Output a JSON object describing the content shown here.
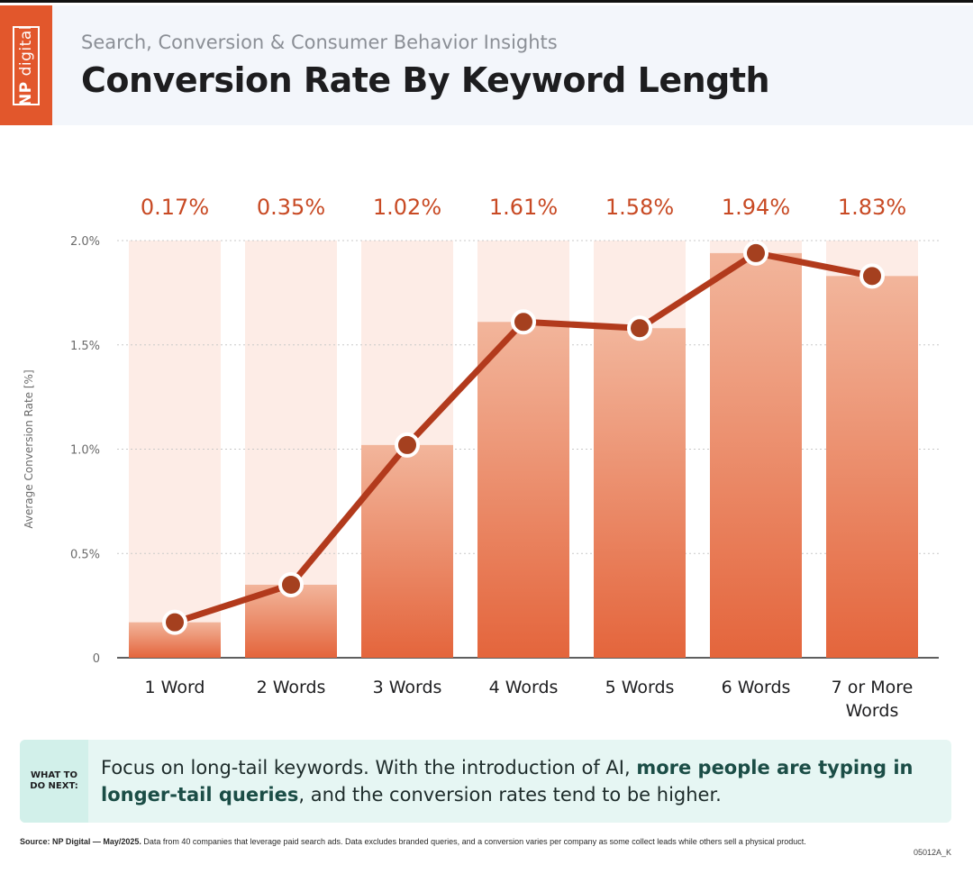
{
  "header": {
    "logo_np": "NP",
    "logo_digital": "digital",
    "subtitle": "Search, Conversion & Consumer Behavior Insights",
    "title": "Conversion Rate By Keyword Length"
  },
  "chart_data": {
    "type": "bar",
    "categories": [
      "1 Word",
      "2 Words",
      "3 Words",
      "4 Words",
      "5 Words",
      "6 Words",
      "7 or More Words"
    ],
    "category_lines": [
      [
        "1 Word"
      ],
      [
        "2 Words"
      ],
      [
        "3 Words"
      ],
      [
        "4 Words"
      ],
      [
        "5 Words"
      ],
      [
        "6 Words"
      ],
      [
        "7 or More",
        "Words"
      ]
    ],
    "values": [
      0.17,
      0.35,
      1.02,
      1.61,
      1.58,
      1.94,
      1.83
    ],
    "value_labels": [
      "0.17%",
      "0.35%",
      "1.02%",
      "1.61%",
      "1.58%",
      "1.94%",
      "1.83%"
    ],
    "overlay": "line with markers on same values",
    "ylabel": "Average Conversion Rate [%]",
    "yticks": [
      0,
      0.5,
      1.0,
      1.5,
      2.0
    ],
    "ytick_labels": [
      "0",
      "0.5%",
      "1.0%",
      "1.5%",
      "2.0%"
    ],
    "ylim": [
      0,
      2.0
    ],
    "grid": "dotted horizontal",
    "colors": {
      "bar_top": "#f2b59b",
      "bar_bottom": "#e4653c",
      "bar_background": "#fdece6",
      "line": "#b23a1c",
      "marker_fill": "#a5401f",
      "value_label": "#c84a24"
    }
  },
  "callout": {
    "tag": "WHAT TO DO NEXT:",
    "text_plain": "Focus on long-tail keywords. With the introduction of AI, ",
    "text_bold": "more people are typing in longer-tail queries",
    "text_end": ", and the conversion rates tend to be higher."
  },
  "footer": {
    "source_bold": "Source: NP Digital — May/2025.",
    "source_text": " Data from 40 companies that leverage paid search ads. Data excludes branded queries, and a conversion varies per company as some collect leads while others sell a physical product.",
    "code": "05012A_K"
  }
}
